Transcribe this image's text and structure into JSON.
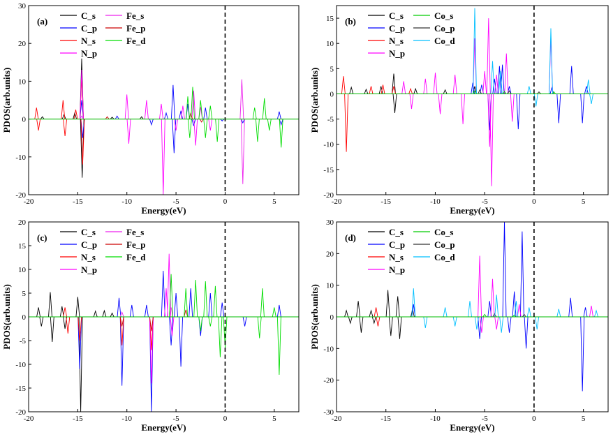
{
  "chart_data": [
    {
      "panel": "(a)",
      "type": "line",
      "xlabel": "Energy(eV)",
      "ylabel": "PDOS(arb.units)",
      "xlim": [
        -20,
        7.5
      ],
      "ylim": [
        -20,
        30
      ],
      "xticks": [
        -20,
        -15,
        -10,
        -5,
        0,
        5
      ],
      "yticks": [
        -20,
        -10,
        0,
        10,
        20,
        30
      ],
      "fermi_level": 0,
      "legend_position": "top-left",
      "series": [
        {
          "name": "C_s",
          "color": "#000000",
          "peaks": [
            [
              -18.6,
              0.6
            ],
            [
              -16.4,
              1.2
            ],
            [
              -15.3,
              1.6
            ],
            [
              -14.6,
              16
            ],
            [
              -14.55,
              -15.5
            ],
            [
              -11.5,
              0.5
            ],
            [
              -8.5,
              0.6
            ]
          ]
        },
        {
          "name": "C_p",
          "color": "#0000ff",
          "peaks": [
            [
              -14.6,
              5
            ],
            [
              -14.5,
              -5
            ],
            [
              -11,
              0.8
            ],
            [
              -7.5,
              -1.5
            ],
            [
              -6,
              1.6
            ],
            [
              -5.3,
              9
            ],
            [
              -5.2,
              -9
            ],
            [
              -4.5,
              2.2
            ],
            [
              -3.8,
              4
            ],
            [
              -3.2,
              -1.8
            ],
            [
              -2,
              3
            ],
            [
              -0.3,
              -0.5
            ],
            [
              1.8,
              -1
            ],
            [
              5.5,
              2
            ],
            [
              5.7,
              -1.5
            ]
          ]
        },
        {
          "name": "N_s",
          "color": "#ff0000",
          "peaks": [
            [
              -19.2,
              3
            ],
            [
              -19,
              -3
            ],
            [
              -16.5,
              5
            ],
            [
              -16.3,
              -4.5
            ],
            [
              -15.2,
              2.5
            ],
            [
              -14.6,
              11
            ],
            [
              -14.5,
              -12
            ]
          ]
        },
        {
          "name": "N_p",
          "color": "#ff00ff",
          "peaks": [
            [
              -14.6,
              13
            ],
            [
              -10,
              6.5
            ],
            [
              -9.8,
              -6.5
            ],
            [
              -8,
              5
            ],
            [
              -6.5,
              4
            ],
            [
              -6.3,
              -20
            ],
            [
              -5,
              -3
            ],
            [
              -4.3,
              3.5
            ],
            [
              -3.2,
              7.5
            ],
            [
              -3,
              -7
            ],
            [
              -2.5,
              3.2
            ],
            [
              -1.5,
              -3
            ]
          ]
        },
        {
          "name": "Fe_s",
          "color": "#ee22ee",
          "peaks": [
            [
              -14.6,
              0.8
            ],
            [
              1.8,
              -17.2
            ],
            [
              1.7,
              10.5
            ]
          ]
        },
        {
          "name": "Fe_p",
          "color": "#cc0000",
          "peaks": [
            [
              -12,
              0.6
            ],
            [
              -3.5,
              1.5
            ],
            [
              -2.4,
              -0.8
            ]
          ]
        },
        {
          "name": "Fe_d",
          "color": "#00dd00",
          "peaks": [
            [
              -3.8,
              6
            ],
            [
              -3.6,
              -5
            ],
            [
              -3.3,
              8.5
            ],
            [
              -2.5,
              5
            ],
            [
              -2,
              -5
            ],
            [
              -1.5,
              3.5
            ],
            [
              -0.8,
              -6
            ],
            [
              3,
              3
            ],
            [
              3.3,
              -6
            ],
            [
              4,
              5.5
            ],
            [
              4.5,
              -3
            ],
            [
              5.7,
              -7.5
            ]
          ]
        }
      ]
    },
    {
      "panel": "(b)",
      "type": "line",
      "xlabel": "Energy(eV)",
      "ylabel": "PDOS(arb.units)",
      "xlim": [
        -20,
        7.5
      ],
      "ylim": [
        -20,
        17.5
      ],
      "xticks": [
        -20,
        -15,
        -10,
        -5,
        0,
        5
      ],
      "yticks": [
        -20,
        -15,
        -10,
        -5,
        0,
        5,
        10,
        15
      ],
      "fermi_level": 0,
      "legend_position": "top-left",
      "series": [
        {
          "name": "C_s",
          "color": "#000000",
          "peaks": [
            [
              -18.5,
              1.3
            ],
            [
              -17,
              0.9
            ],
            [
              -15.5,
              1.5
            ],
            [
              -14.2,
              4
            ],
            [
              -14.1,
              -3.8
            ],
            [
              -12,
              1
            ],
            [
              -9,
              0.8
            ],
            [
              -6,
              1.5
            ]
          ]
        },
        {
          "name": "C_p",
          "color": "#0000ff",
          "peaks": [
            [
              -6.2,
              2.2
            ],
            [
              -5.3,
              1.8
            ],
            [
              -4.5,
              -7.2
            ],
            [
              -4,
              3
            ],
            [
              -3.5,
              5.5
            ],
            [
              -3.2,
              5.8
            ],
            [
              -2.5,
              1.5
            ],
            [
              -1.6,
              -7
            ],
            [
              1.8,
              1.2
            ],
            [
              2.5,
              -5.8
            ],
            [
              3.8,
              5.5
            ],
            [
              4.9,
              -5.8
            ],
            [
              5.3,
              1.5
            ]
          ]
        },
        {
          "name": "N_s",
          "color": "#ff0000",
          "peaks": [
            [
              -19.3,
              3.5
            ],
            [
              -19,
              -11.5
            ],
            [
              -16.5,
              1.5
            ],
            [
              -15.3,
              1.8
            ],
            [
              -14.2,
              1.5
            ],
            [
              -12.5,
              1
            ]
          ]
        },
        {
          "name": "N_p",
          "color": "#ff00ff",
          "peaks": [
            [
              -13.2,
              2.5
            ],
            [
              -12.4,
              -3
            ],
            [
              -11,
              3
            ],
            [
              -10,
              4.2
            ],
            [
              -9.5,
              -4
            ],
            [
              -8,
              3.8
            ],
            [
              -7.2,
              -6
            ],
            [
              -6,
              11
            ],
            [
              -5,
              4.5
            ],
            [
              -4.6,
              15
            ],
            [
              -4.5,
              -10.5
            ],
            [
              -4.3,
              -18.3
            ],
            [
              -3.8,
              3.8
            ],
            [
              -2.8,
              8
            ],
            [
              -2.2,
              -5.5
            ],
            [
              1.7,
              11.5
            ]
          ]
        },
        {
          "name": "Co_s",
          "color": "#00cc00",
          "peaks": [
            [
              -6,
              0.6
            ],
            [
              -3,
              0.5
            ],
            [
              2,
              0.4
            ]
          ]
        },
        {
          "name": "Co_p",
          "color": "#333333",
          "peaks": [
            [
              -5.5,
              0.8
            ],
            [
              -2.5,
              0.6
            ],
            [
              0.5,
              0.4
            ]
          ]
        },
        {
          "name": "Co_d",
          "color": "#00bfff",
          "peaks": [
            [
              -6,
              17
            ],
            [
              -4.2,
              6.5
            ],
            [
              -3.4,
              4.5
            ],
            [
              -0.5,
              1.5
            ],
            [
              0.2,
              -2.5
            ],
            [
              1.7,
              13
            ],
            [
              5.5,
              2.8
            ],
            [
              5.8,
              -2
            ]
          ]
        }
      ]
    },
    {
      "panel": "(c)",
      "type": "line",
      "xlabel": "Energy(eV)",
      "ylabel": "PDOS(arb.units)",
      "xlim": [
        -20,
        7.5
      ],
      "ylim": [
        -20,
        20
      ],
      "xticks": [
        -20,
        -15,
        -10,
        -5,
        0,
        5
      ],
      "yticks": [
        -20,
        -15,
        -10,
        -5,
        0,
        5,
        10,
        15,
        20
      ],
      "fermi_level": 0,
      "legend_position": "top-left",
      "series": [
        {
          "name": "C_s",
          "color": "#000000",
          "peaks": [
            [
              -19,
              2
            ],
            [
              -18.7,
              -2
            ],
            [
              -17.8,
              5.2
            ],
            [
              -17.6,
              -5.3
            ],
            [
              -16.6,
              2.2
            ],
            [
              -16.3,
              -2.5
            ],
            [
              -15,
              4.2
            ],
            [
              -14.7,
              -20
            ],
            [
              -13.2,
              1.2
            ],
            [
              -12.3,
              1.3
            ],
            [
              -11.5,
              0.8
            ]
          ]
        },
        {
          "name": "C_p",
          "color": "#0000ff",
          "peaks": [
            [
              -14.8,
              -11
            ],
            [
              -10.8,
              4
            ],
            [
              -10.5,
              -14.5
            ],
            [
              -9.5,
              2.5
            ],
            [
              -8,
              2.5
            ],
            [
              -7.5,
              -20
            ],
            [
              -6.3,
              9.7
            ],
            [
              -5.5,
              -6
            ],
            [
              -5,
              5
            ],
            [
              -4.5,
              -10.5
            ],
            [
              -3.5,
              6
            ],
            [
              -2.5,
              -4
            ],
            [
              -1.5,
              5
            ],
            [
              -0.3,
              3
            ],
            [
              2,
              -2
            ],
            [
              5.5,
              2.5
            ]
          ]
        },
        {
          "name": "N_s",
          "color": "#ff0000",
          "peaks": [
            [
              -16.3,
              2
            ],
            [
              -16,
              -3.5
            ],
            [
              -14.8,
              -5
            ],
            [
              -10.5,
              -6
            ],
            [
              -7.5,
              -7
            ]
          ]
        },
        {
          "name": "N_p",
          "color": "#ff00ff",
          "peaks": [
            [
              -7.5,
              -14
            ],
            [
              -6,
              6
            ],
            [
              -5.7,
              13.3
            ],
            [
              -5.4,
              -4
            ]
          ]
        },
        {
          "name": "Fe_s",
          "color": "#ee22ee",
          "peaks": [
            [
              -10.5,
              1
            ],
            [
              -5.5,
              2
            ]
          ]
        },
        {
          "name": "Fe_p",
          "color": "#cc0000",
          "peaks": [
            [
              -10.5,
              -2
            ],
            [
              -7.5,
              -3
            ],
            [
              -4,
              1.5
            ]
          ]
        },
        {
          "name": "Fe_d",
          "color": "#00dd00",
          "peaks": [
            [
              -5.5,
              9
            ],
            [
              -4,
              6
            ],
            [
              -3,
              7.8
            ],
            [
              -2.5,
              -3
            ],
            [
              -2,
              7.5
            ],
            [
              -1.5,
              -2
            ],
            [
              -1,
              6.5
            ],
            [
              -0.5,
              -8.5
            ],
            [
              0,
              -6.5
            ],
            [
              3.8,
              6
            ],
            [
              3.5,
              -4.5
            ],
            [
              5.5,
              -12.2
            ],
            [
              5,
              2
            ]
          ]
        }
      ]
    },
    {
      "panel": "(d)",
      "type": "line",
      "xlabel": "Energy(eV)",
      "ylabel": "PDOS(arb.units)",
      "xlim": [
        -20,
        7.5
      ],
      "ylim": [
        -30,
        30
      ],
      "xticks": [
        -20,
        -15,
        -10,
        -5,
        0,
        5
      ],
      "yticks": [
        -30,
        -20,
        -10,
        0,
        10,
        20,
        30
      ],
      "fermi_level": 0,
      "legend_position": "top-left",
      "series": [
        {
          "name": "C_s",
          "color": "#000000",
          "peaks": [
            [
              -19,
              2
            ],
            [
              -18.6,
              -2
            ],
            [
              -17.8,
              5
            ],
            [
              -17.5,
              -5
            ],
            [
              -16.5,
              2
            ],
            [
              -16.2,
              -2
            ],
            [
              -14.8,
              8.5
            ],
            [
              -14.5,
              -6
            ],
            [
              -13.8,
              6.5
            ],
            [
              -13.6,
              -7
            ],
            [
              -12.3,
              2.5
            ]
          ]
        },
        {
          "name": "C_p",
          "color": "#0000ff",
          "peaks": [
            [
              -12.2,
              4
            ],
            [
              -5.5,
              -7
            ],
            [
              -4.5,
              5
            ],
            [
              -3,
              30
            ],
            [
              -2.5,
              -5
            ],
            [
              -2,
              8
            ],
            [
              -1.2,
              27
            ],
            [
              -0.8,
              -10
            ],
            [
              3.7,
              6
            ],
            [
              4.9,
              -23.5
            ],
            [
              5.2,
              3
            ]
          ]
        },
        {
          "name": "N_s",
          "color": "#ff0000",
          "peaks": [
            [
              -16,
              3
            ],
            [
              -15.8,
              -3
            ]
          ]
        },
        {
          "name": "N_p",
          "color": "#ff00ff",
          "peaks": [
            [
              -5.5,
              19.3
            ],
            [
              -5.3,
              -5
            ],
            [
              -4.2,
              12
            ],
            [
              -3.8,
              -4
            ],
            [
              -1.5,
              4
            ],
            [
              5.8,
              3.5
            ]
          ]
        },
        {
          "name": "Co_s",
          "color": "#00cc00",
          "peaks": [
            [
              -5,
              0.8
            ],
            [
              -2,
              0.6
            ]
          ]
        },
        {
          "name": "Co_p",
          "color": "#333333",
          "peaks": [
            [
              -4,
              1
            ],
            [
              -1,
              0.8
            ]
          ]
        },
        {
          "name": "Co_d",
          "color": "#00bfff",
          "peaks": [
            [
              -12.2,
              9
            ],
            [
              -11,
              -3.5
            ],
            [
              -9,
              3
            ],
            [
              -8,
              -3
            ],
            [
              -6.5,
              5
            ],
            [
              -5.8,
              -4
            ],
            [
              -3.8,
              7
            ],
            [
              -3.3,
              -5
            ],
            [
              -1.8,
              5
            ],
            [
              -0.5,
              3
            ],
            [
              0.3,
              -4
            ],
            [
              2.5,
              2.5
            ],
            [
              6.3,
              2
            ]
          ]
        }
      ]
    }
  ]
}
